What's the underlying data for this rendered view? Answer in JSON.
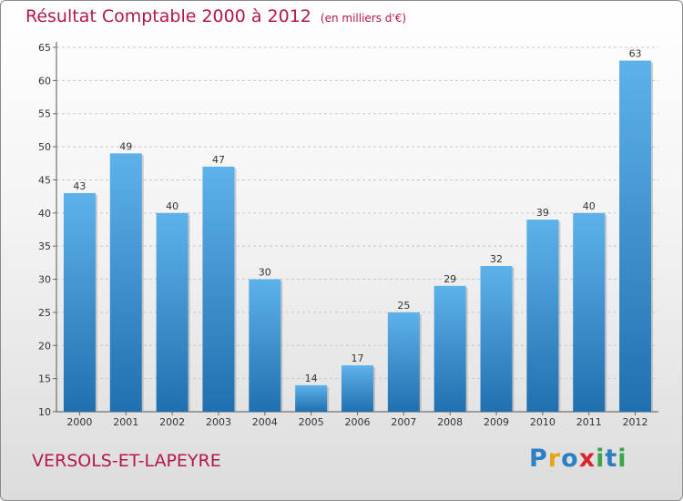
{
  "header": {
    "title": "Résultat Comptable 2000 à 2012",
    "subtitle": "(en milliers d'€)"
  },
  "footer": {
    "place": "VERSOLS-ET-LAPEYRE",
    "logo_letters": [
      "P",
      "r",
      "o",
      "x",
      "i",
      "t",
      "i"
    ]
  },
  "colors": {
    "accent": "#b5174d",
    "bar_top": "#5eb2ea",
    "bar_bottom": "#2070b0",
    "logo": [
      "#2b7fc4",
      "#e8a418",
      "#2b7fc4",
      "#d9262c",
      "#3aa545",
      "#2b7fc4",
      "#3aa545"
    ]
  },
  "chart_data": {
    "type": "bar",
    "title": "Résultat Comptable 2000 à 2012",
    "subtitle": "(en milliers d'€)",
    "categories": [
      "2000",
      "2001",
      "2002",
      "2003",
      "2004",
      "2005",
      "2006",
      "2007",
      "2008",
      "2009",
      "2010",
      "2011",
      "2012"
    ],
    "values": [
      43,
      49,
      40,
      47,
      30,
      14,
      17,
      25,
      29,
      32,
      39,
      40,
      63
    ],
    "ylim": [
      10,
      65
    ],
    "yticks": [
      10,
      15,
      20,
      25,
      30,
      35,
      40,
      45,
      50,
      55,
      60,
      65
    ],
    "xlabel": "",
    "ylabel": "",
    "grid": true
  }
}
